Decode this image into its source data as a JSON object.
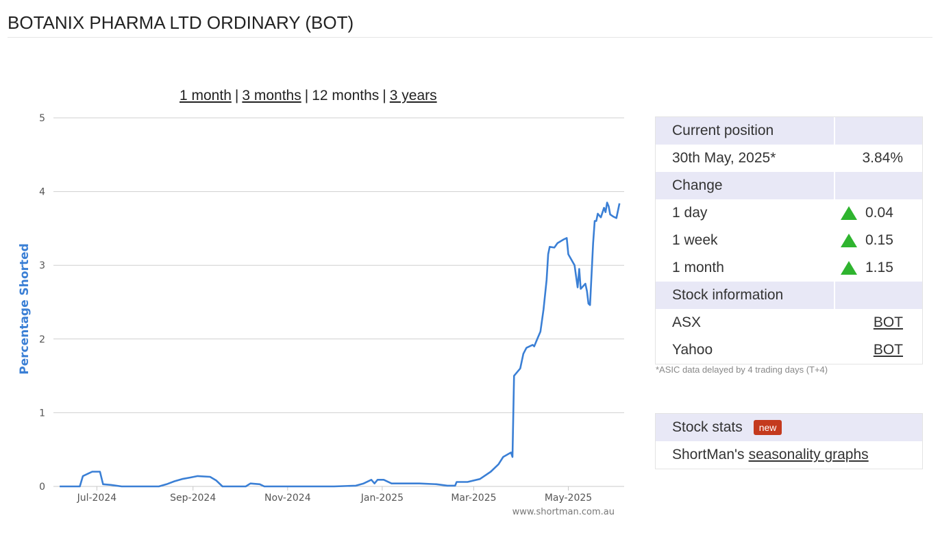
{
  "header": {
    "title": "BOTANIX PHARMA LTD ORDINARY (BOT)"
  },
  "range_nav": {
    "items": [
      {
        "label": "1 month",
        "link": true
      },
      {
        "label": "3 months",
        "link": true
      },
      {
        "label": "12 months",
        "link": false
      },
      {
        "label": "3 years",
        "link": true
      }
    ],
    "separator": "|"
  },
  "chart_data": {
    "type": "line",
    "title": "",
    "xlabel": "",
    "ylabel": "Percentage Shorted",
    "ylim": [
      0,
      5
    ],
    "yticks": [
      0,
      1,
      2,
      3,
      4,
      5
    ],
    "xlim": [
      "2024-06-03",
      "2025-06-06"
    ],
    "xticks": [
      {
        "date": "2024-07-01",
        "label": "Jul-2024"
      },
      {
        "date": "2024-09-01",
        "label": "Sep-2024"
      },
      {
        "date": "2024-11-01",
        "label": "Nov-2024"
      },
      {
        "date": "2025-01-01",
        "label": "Jan-2025"
      },
      {
        "date": "2025-03-01",
        "label": "Mar-2025"
      },
      {
        "date": "2025-05-01",
        "label": "May-2025"
      }
    ],
    "grid": true,
    "line_color": "#3a7fd5",
    "series": [
      {
        "name": "",
        "points": [
          [
            "2024-06-07",
            0.0
          ],
          [
            "2024-06-20",
            0.0
          ],
          [
            "2024-06-22",
            0.14
          ],
          [
            "2024-06-25",
            0.17
          ],
          [
            "2024-06-28",
            0.2
          ],
          [
            "2024-07-03",
            0.2
          ],
          [
            "2024-07-05",
            0.03
          ],
          [
            "2024-07-10",
            0.02
          ],
          [
            "2024-07-17",
            0.0
          ],
          [
            "2024-08-10",
            0.0
          ],
          [
            "2024-08-15",
            0.03
          ],
          [
            "2024-08-20",
            0.07
          ],
          [
            "2024-08-25",
            0.1
          ],
          [
            "2024-08-30",
            0.12
          ],
          [
            "2024-09-04",
            0.14
          ],
          [
            "2024-09-12",
            0.13
          ],
          [
            "2024-09-16",
            0.08
          ],
          [
            "2024-09-20",
            0.0
          ],
          [
            "2024-10-05",
            0.0
          ],
          [
            "2024-10-08",
            0.04
          ],
          [
            "2024-10-14",
            0.03
          ],
          [
            "2024-10-17",
            0.0
          ],
          [
            "2024-12-01",
            0.0
          ],
          [
            "2024-12-15",
            0.01
          ],
          [
            "2024-12-20",
            0.04
          ],
          [
            "2024-12-25",
            0.09
          ],
          [
            "2024-12-27",
            0.04
          ],
          [
            "2024-12-29",
            0.09
          ],
          [
            "2025-01-02",
            0.09
          ],
          [
            "2025-01-07",
            0.04
          ],
          [
            "2025-01-15",
            0.04
          ],
          [
            "2025-01-25",
            0.04
          ],
          [
            "2025-02-05",
            0.03
          ],
          [
            "2025-02-12",
            0.01
          ],
          [
            "2025-02-17",
            0.01
          ],
          [
            "2025-02-18",
            0.06
          ],
          [
            "2025-02-25",
            0.06
          ],
          [
            "2025-03-05",
            0.1
          ],
          [
            "2025-03-12",
            0.2
          ],
          [
            "2025-03-17",
            0.3
          ],
          [
            "2025-03-20",
            0.4
          ],
          [
            "2025-03-25",
            0.46
          ],
          [
            "2025-03-26",
            0.4
          ],
          [
            "2025-03-27",
            1.5
          ],
          [
            "2025-03-31",
            1.6
          ],
          [
            "2025-04-02",
            1.8
          ],
          [
            "2025-04-04",
            1.88
          ],
          [
            "2025-04-08",
            1.92
          ],
          [
            "2025-04-09",
            1.9
          ],
          [
            "2025-04-11",
            2.0
          ],
          [
            "2025-04-13",
            2.1
          ],
          [
            "2025-04-15",
            2.4
          ],
          [
            "2025-04-17",
            2.8
          ],
          [
            "2025-04-18",
            3.15
          ],
          [
            "2025-04-19",
            3.25
          ],
          [
            "2025-04-22",
            3.24
          ],
          [
            "2025-04-24",
            3.3
          ],
          [
            "2025-04-28",
            3.35
          ],
          [
            "2025-04-30",
            3.37
          ],
          [
            "2025-05-01",
            3.15
          ],
          [
            "2025-05-05",
            3.0
          ],
          [
            "2025-05-07",
            2.7
          ],
          [
            "2025-05-08",
            2.95
          ],
          [
            "2025-05-09",
            2.68
          ],
          [
            "2025-05-12",
            2.75
          ],
          [
            "2025-05-13",
            2.65
          ],
          [
            "2025-05-14",
            2.48
          ],
          [
            "2025-05-15",
            2.46
          ],
          [
            "2025-05-17",
            3.3
          ],
          [
            "2025-05-18",
            3.6
          ],
          [
            "2025-05-19",
            3.6
          ],
          [
            "2025-05-20",
            3.7
          ],
          [
            "2025-05-22",
            3.65
          ],
          [
            "2025-05-24",
            3.78
          ],
          [
            "2025-05-25",
            3.72
          ],
          [
            "2025-05-26",
            3.85
          ],
          [
            "2025-05-27",
            3.8
          ],
          [
            "2025-05-28",
            3.69
          ],
          [
            "2025-05-30",
            3.66
          ],
          [
            "2025-06-01",
            3.64
          ],
          [
            "2025-06-03",
            3.84
          ]
        ]
      }
    ]
  },
  "credit": "www.shortman.com.au",
  "position_panel": {
    "sections": [
      {
        "title": "Current position",
        "rows": [
          {
            "label": "30th May, 2025*",
            "value": "3.84%"
          }
        ]
      },
      {
        "title": "Change",
        "rows": [
          {
            "label": "1 day",
            "value": "0.04",
            "icon": "up-triangle-icon"
          },
          {
            "label": "1 week",
            "value": "0.15",
            "icon": "up-triangle-icon"
          },
          {
            "label": "1 month",
            "value": "1.15",
            "icon": "up-triangle-icon"
          }
        ]
      },
      {
        "title": "Stock information",
        "rows": [
          {
            "label": "ASX",
            "value": "BOT",
            "link": true
          },
          {
            "label": "Yahoo",
            "value": "BOT",
            "link": true
          }
        ]
      }
    ],
    "footnote": "*ASIC data delayed by 4 trading days (T+4)"
  },
  "stats_panel": {
    "title": "Stock stats",
    "badge": "new",
    "text": "ShortMan's",
    "link_label": "seasonality graphs"
  }
}
